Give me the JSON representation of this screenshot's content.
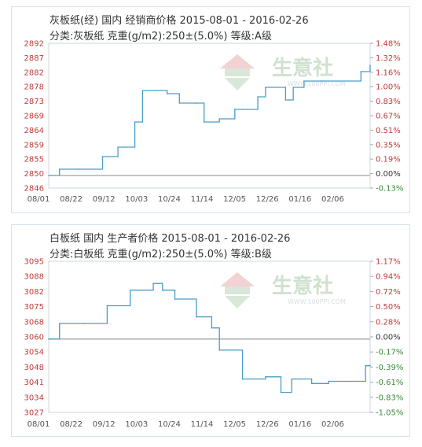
{
  "watermark": {
    "text": "生意社",
    "url": "WWW.100PPI.COM"
  },
  "chart_data": [
    {
      "type": "line",
      "title": "灰板纸(经) 国内 经销商价格 2015-08-01 - 2016-02-26",
      "subtitle": "分类:灰板纸 克重(g/m2):250±(5.0%) 等级:A级",
      "x_ticks": [
        "08/01",
        "08/22",
        "09/12",
        "10/03",
        "10/24",
        "11/14",
        "12/05",
        "12/26",
        "01/16",
        "02/06"
      ],
      "y_ticks": [
        "2846",
        "2850",
        "2855",
        "2859",
        "2864",
        "2869",
        "2873",
        "2878",
        "2882",
        "2887",
        "2892"
      ],
      "y2_ticks": [
        "-0.13%",
        "0.00%",
        "0.19%",
        "0.35%",
        "0.51%",
        "0.67%",
        "0.83%",
        "1.00%",
        "1.16%",
        "1.32%",
        "1.48%"
      ],
      "ylim": [
        2846,
        2892
      ],
      "baseline": 2850,
      "x_range": [
        "2015-08-01",
        "2016-02-26"
      ],
      "colors": {
        "line": "#4a9cc7",
        "positive": "#c23a3a",
        "negative": "#3a8a3a",
        "baseline": "#888888"
      },
      "series": [
        {
          "x": [
            "2015-08-01",
            "2015-08-08",
            "2015-08-20",
            "2015-09-05",
            "2015-09-15",
            "2015-09-26",
            "2015-10-01",
            "2015-10-09",
            "2015-10-17",
            "2015-10-25",
            "2015-11-05",
            "2015-11-10",
            "2015-11-20",
            "2015-11-30",
            "2015-12-05",
            "2015-12-15",
            "2015-12-20",
            "2016-01-02",
            "2016-01-07",
            "2016-01-14",
            "2016-01-25",
            "2016-02-20",
            "2016-02-26"
          ],
          "y": [
            2850,
            2852,
            2852,
            2856,
            2859,
            2867,
            2877,
            2877,
            2876,
            2873,
            2873,
            2867,
            2868,
            2871,
            2871,
            2875,
            2878,
            2874,
            2878,
            2880,
            2880,
            2883,
            2885
          ]
        }
      ]
    },
    {
      "type": "line",
      "title": "白板纸 国内 生产者价格 2015-08-01 - 2016-02-26",
      "subtitle": "分类:白板纸 克重(g/m2):250±(5.0%) 等级:B级",
      "x_ticks": [
        "08/01",
        "08/22",
        "09/12",
        "10/03",
        "10/24",
        "11/14",
        "12/05",
        "12/26",
        "01/16",
        "02/06"
      ],
      "y_ticks": [
        "3027",
        "3034",
        "3041",
        "3048",
        "3054",
        "3060",
        "3068",
        "3075",
        "3082",
        "3088",
        "3095"
      ],
      "y2_ticks": [
        "-1.05%",
        "-0.83%",
        "-0.61%",
        "-0.39%",
        "-0.17%",
        "0.00%",
        "0.28%",
        "0.50%",
        "0.72%",
        "0.94%",
        "1.17%"
      ],
      "ylim": [
        3027,
        3095
      ],
      "baseline": 3060,
      "x_range": [
        "2015-08-01",
        "2016-02-26"
      ],
      "colors": {
        "line": "#4a9cc7",
        "positive": "#c23a3a",
        "negative": "#3a8a3a",
        "baseline": "#888888"
      },
      "series": [
        {
          "x": [
            "2015-08-01",
            "2015-08-08",
            "2015-08-24",
            "2015-09-08",
            "2015-09-23",
            "2015-10-08",
            "2015-10-14",
            "2015-10-22",
            "2015-11-05",
            "2015-11-15",
            "2015-11-20",
            "2015-12-05",
            "2015-12-20",
            "2015-12-30",
            "2016-01-06",
            "2016-01-12",
            "2016-01-19",
            "2016-01-30",
            "2016-02-23",
            "2016-02-26"
          ],
          "y": [
            3060,
            3067,
            3067,
            3075,
            3082,
            3085,
            3082,
            3078,
            3070,
            3065,
            3055,
            3042,
            3043,
            3036,
            3042,
            3042,
            3040,
            3041,
            3048,
            3048
          ]
        }
      ]
    }
  ]
}
